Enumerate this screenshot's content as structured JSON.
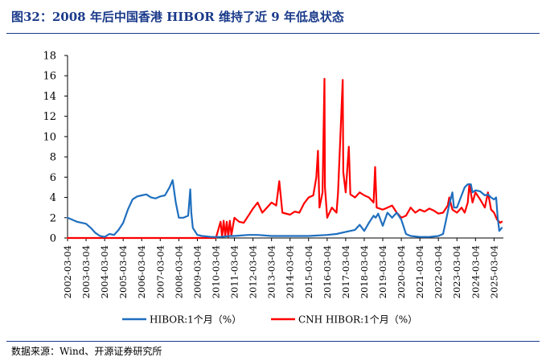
{
  "figure": {
    "title": "图32：2008 年后中国香港 HIBOR 维持了近 9 年低息状态",
    "source": "数据来源：Wind、开源证券研究所"
  },
  "chart_data": {
    "type": "line",
    "title": "图32：2008 年后中国香港 HIBOR 维持了近 9 年低息状态",
    "xlabel": "",
    "ylabel": "",
    "ylim": [
      0,
      18
    ],
    "yticks": [
      0,
      2,
      4,
      6,
      8,
      10,
      12,
      14,
      16,
      18
    ],
    "xlim": [
      "2002-03-04",
      "2025-09-04"
    ],
    "xticks": [
      "2002-03-04",
      "2003-03-04",
      "2004-03-04",
      "2005-03-04",
      "2006-03-04",
      "2007-03-04",
      "2008-03-04",
      "2009-03-04",
      "2010-03-04",
      "2011-03-04",
      "2012-03-04",
      "2013-03-04",
      "2014-03-04",
      "2015-03-04",
      "2016-03-04",
      "2017-03-04",
      "2018-03-04",
      "2019-03-04",
      "2020-03-04",
      "2021-03-04",
      "2022-03-04",
      "2023-03-04",
      "2024-03-04",
      "2025-03-04"
    ],
    "grid": false,
    "legend_position": "bottom",
    "series": [
      {
        "name": "HIBOR:1个月（%）",
        "color": "#1f6fbf",
        "points": [
          [
            "2002-03-04",
            2.0
          ],
          [
            "2002-06-04",
            1.8
          ],
          [
            "2002-09-04",
            1.6
          ],
          [
            "2002-12-04",
            1.5
          ],
          [
            "2003-03-04",
            1.4
          ],
          [
            "2003-06-04",
            1.0
          ],
          [
            "2003-09-04",
            0.5
          ],
          [
            "2003-12-04",
            0.2
          ],
          [
            "2004-03-04",
            0.1
          ],
          [
            "2004-06-04",
            0.4
          ],
          [
            "2004-09-04",
            0.3
          ],
          [
            "2004-12-04",
            0.8
          ],
          [
            "2005-03-04",
            1.5
          ],
          [
            "2005-06-04",
            2.8
          ],
          [
            "2005-09-04",
            3.8
          ],
          [
            "2005-12-04",
            4.1
          ],
          [
            "2006-03-04",
            4.2
          ],
          [
            "2006-06-04",
            4.3
          ],
          [
            "2006-09-04",
            4.0
          ],
          [
            "2006-12-04",
            3.9
          ],
          [
            "2007-03-04",
            4.1
          ],
          [
            "2007-06-04",
            4.2
          ],
          [
            "2007-09-04",
            5.0
          ],
          [
            "2007-11-04",
            5.7
          ],
          [
            "2008-01-04",
            3.5
          ],
          [
            "2008-03-04",
            2.0
          ],
          [
            "2008-06-04",
            2.0
          ],
          [
            "2008-09-04",
            2.2
          ],
          [
            "2008-10-15",
            4.8
          ],
          [
            "2008-11-04",
            2.5
          ],
          [
            "2008-12-04",
            1.0
          ],
          [
            "2009-03-04",
            0.3
          ],
          [
            "2009-06-04",
            0.2
          ],
          [
            "2009-12-04",
            0.1
          ],
          [
            "2010-06-04",
            0.1
          ],
          [
            "2010-12-04",
            0.2
          ],
          [
            "2011-03-04",
            0.2
          ],
          [
            "2011-12-04",
            0.3
          ],
          [
            "2012-06-04",
            0.3
          ],
          [
            "2013-03-04",
            0.2
          ],
          [
            "2014-03-04",
            0.2
          ],
          [
            "2015-03-04",
            0.2
          ],
          [
            "2016-03-04",
            0.3
          ],
          [
            "2016-09-04",
            0.4
          ],
          [
            "2017-03-04",
            0.6
          ],
          [
            "2017-06-04",
            0.7
          ],
          [
            "2017-09-04",
            0.8
          ],
          [
            "2017-12-04",
            1.3
          ],
          [
            "2018-03-04",
            0.7
          ],
          [
            "2018-06-04",
            1.5
          ],
          [
            "2018-09-04",
            2.2
          ],
          [
            "2018-10-15",
            2.0
          ],
          [
            "2018-12-04",
            2.4
          ],
          [
            "2019-03-04",
            1.2
          ],
          [
            "2019-06-04",
            2.5
          ],
          [
            "2019-09-04",
            2.0
          ],
          [
            "2019-12-04",
            2.5
          ],
          [
            "2020-03-04",
            1.8
          ],
          [
            "2020-06-04",
            0.4
          ],
          [
            "2020-09-04",
            0.2
          ],
          [
            "2021-03-04",
            0.1
          ],
          [
            "2021-09-04",
            0.1
          ],
          [
            "2022-03-04",
            0.2
          ],
          [
            "2022-06-04",
            0.4
          ],
          [
            "2022-08-04",
            1.8
          ],
          [
            "2022-10-04",
            3.3
          ],
          [
            "2022-12-04",
            4.5
          ],
          [
            "2023-01-04",
            3.0
          ],
          [
            "2023-03-04",
            3.0
          ],
          [
            "2023-06-04",
            4.2
          ],
          [
            "2023-08-04",
            5.0
          ],
          [
            "2023-10-04",
            5.3
          ],
          [
            "2023-12-04",
            5.3
          ],
          [
            "2024-01-04",
            4.5
          ],
          [
            "2024-03-04",
            4.7
          ],
          [
            "2024-06-04",
            4.6
          ],
          [
            "2024-09-04",
            4.2
          ],
          [
            "2024-11-04",
            4.3
          ],
          [
            "2025-01-04",
            4.0
          ],
          [
            "2025-03-04",
            3.8
          ],
          [
            "2025-04-15",
            4.0
          ],
          [
            "2025-05-15",
            2.0
          ],
          [
            "2025-06-15",
            0.7
          ],
          [
            "2025-08-04",
            1.0
          ]
        ]
      },
      {
        "name": "CNH HIBOR:1个月（%）",
        "color": "#ff0000",
        "points": [
          [
            "2002-03-04",
            0.0
          ],
          [
            "2010-03-04",
            0.0
          ],
          [
            "2010-06-04",
            1.6
          ],
          [
            "2010-07-04",
            0.1
          ],
          [
            "2010-08-04",
            1.7
          ],
          [
            "2010-09-04",
            0.2
          ],
          [
            "2010-10-04",
            1.6
          ],
          [
            "2010-11-04",
            0.1
          ],
          [
            "2010-12-04",
            1.7
          ],
          [
            "2011-01-04",
            0.3
          ],
          [
            "2011-03-04",
            2.0
          ],
          [
            "2011-06-04",
            1.6
          ],
          [
            "2011-09-04",
            1.5
          ],
          [
            "2011-12-04",
            2.2
          ],
          [
            "2012-03-04",
            2.9
          ],
          [
            "2012-06-04",
            3.5
          ],
          [
            "2012-09-04",
            2.5
          ],
          [
            "2012-12-04",
            3.0
          ],
          [
            "2013-03-04",
            3.5
          ],
          [
            "2013-06-04",
            3.2
          ],
          [
            "2013-08-04",
            5.6
          ],
          [
            "2013-10-04",
            2.5
          ],
          [
            "2014-03-04",
            2.3
          ],
          [
            "2014-06-04",
            2.6
          ],
          [
            "2014-09-04",
            2.5
          ],
          [
            "2014-12-04",
            3.4
          ],
          [
            "2015-03-04",
            4.0
          ],
          [
            "2015-06-04",
            4.2
          ],
          [
            "2015-08-04",
            6.0
          ],
          [
            "2015-09-04",
            8.6
          ],
          [
            "2015-10-04",
            3.0
          ],
          [
            "2015-12-04",
            4.5
          ],
          [
            "2016-01-10",
            15.7
          ],
          [
            "2016-01-20",
            5.0
          ],
          [
            "2016-03-04",
            2.0
          ],
          [
            "2016-06-04",
            3.0
          ],
          [
            "2016-09-04",
            2.5
          ],
          [
            "2016-10-04",
            4.5
          ],
          [
            "2017-01-04",
            15.6
          ],
          [
            "2017-01-15",
            6.5
          ],
          [
            "2017-03-04",
            4.5
          ],
          [
            "2017-05-04",
            9.0
          ],
          [
            "2017-06-04",
            4.3
          ],
          [
            "2017-09-04",
            4.0
          ],
          [
            "2017-12-04",
            4.5
          ],
          [
            "2018-03-04",
            4.2
          ],
          [
            "2018-06-04",
            4.0
          ],
          [
            "2018-09-04",
            3.5
          ],
          [
            "2018-10-04",
            7.0
          ],
          [
            "2018-11-04",
            3.0
          ],
          [
            "2019-03-04",
            2.8
          ],
          [
            "2019-06-04",
            3.0
          ],
          [
            "2019-09-04",
            3.2
          ],
          [
            "2019-12-04",
            2.5
          ],
          [
            "2020-03-04",
            2.0
          ],
          [
            "2020-06-04",
            2.2
          ],
          [
            "2020-09-04",
            3.0
          ],
          [
            "2020-12-04",
            2.5
          ],
          [
            "2021-03-04",
            2.8
          ],
          [
            "2021-06-04",
            2.6
          ],
          [
            "2021-09-04",
            2.9
          ],
          [
            "2021-12-04",
            2.7
          ],
          [
            "2022-03-04",
            2.4
          ],
          [
            "2022-06-04",
            2.5
          ],
          [
            "2022-09-04",
            3.2
          ],
          [
            "2022-10-04",
            4.0
          ],
          [
            "2022-12-04",
            2.8
          ],
          [
            "2023-03-04",
            2.5
          ],
          [
            "2023-06-04",
            3.0
          ],
          [
            "2023-08-04",
            2.5
          ],
          [
            "2023-10-04",
            3.5
          ],
          [
            "2023-11-04",
            5.3
          ],
          [
            "2024-01-04",
            3.5
          ],
          [
            "2024-03-04",
            4.5
          ],
          [
            "2024-06-04",
            3.8
          ],
          [
            "2024-09-04",
            3.0
          ],
          [
            "2024-11-04",
            4.5
          ],
          [
            "2025-01-04",
            2.8
          ],
          [
            "2025-03-04",
            2.5
          ],
          [
            "2025-05-04",
            1.8
          ],
          [
            "2025-07-04",
            1.5
          ],
          [
            "2025-08-04",
            1.6
          ]
        ]
      }
    ]
  }
}
